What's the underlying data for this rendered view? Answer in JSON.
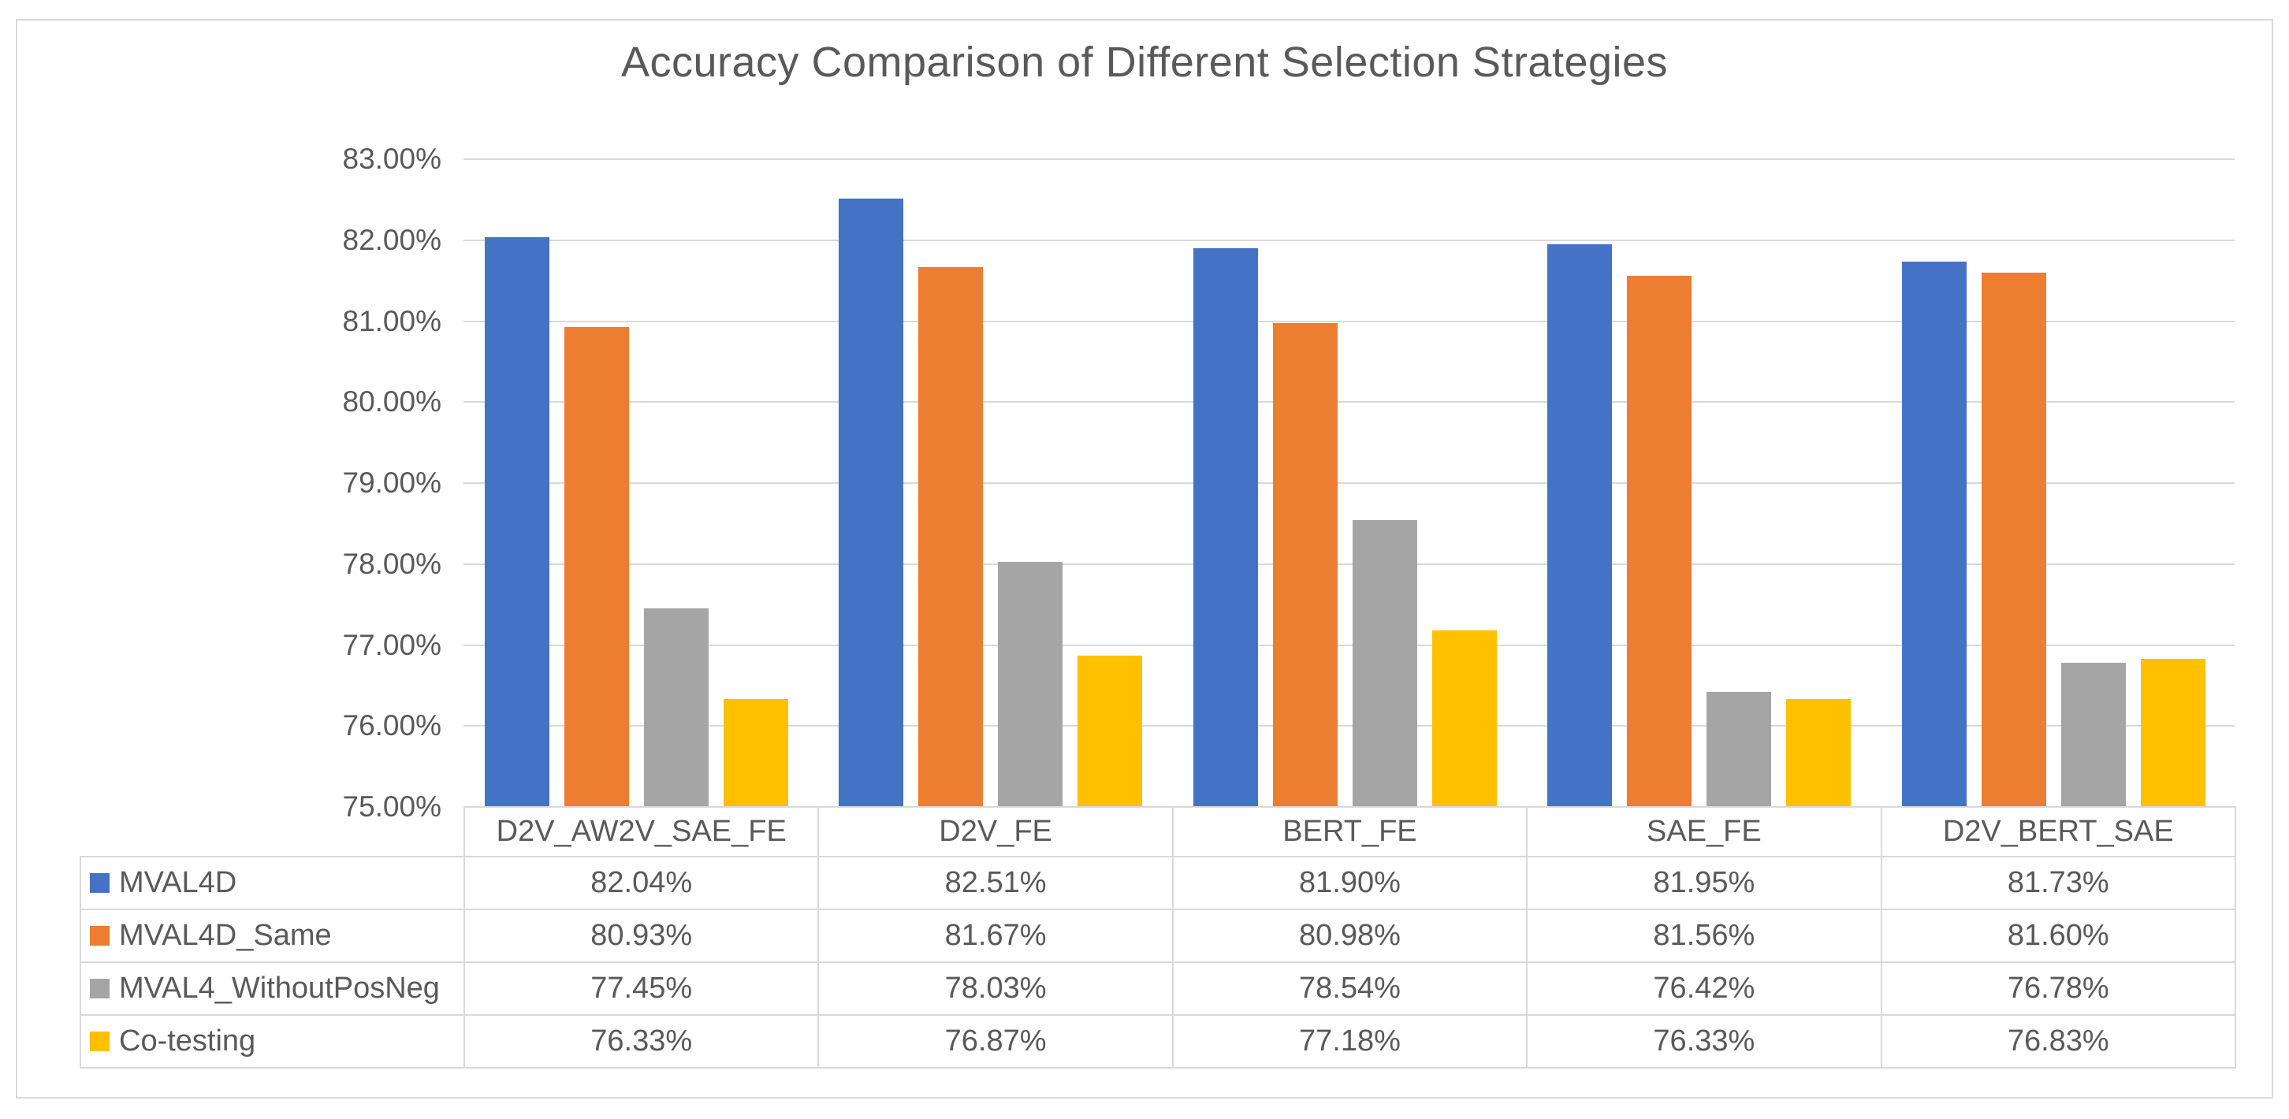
{
  "chart_data": {
    "type": "bar",
    "title": "Accuracy Comparison of Different Selection Strategies",
    "categories": [
      "D2V_AW2V_SAE_FE",
      "D2V_FE",
      "BERT_FE",
      "SAE_FE",
      "D2V_BERT_SAE"
    ],
    "series": [
      {
        "name": "MVAL4D",
        "color": "#4472C4",
        "values": [
          82.04,
          82.51,
          81.9,
          81.95,
          81.73
        ],
        "display": [
          "82.04%",
          "82.51%",
          "81.90%",
          "81.95%",
          "81.73%"
        ]
      },
      {
        "name": "MVAL4D_Same",
        "color": "#ED7D31",
        "values": [
          80.93,
          81.67,
          80.98,
          81.56,
          81.6
        ],
        "display": [
          "80.93%",
          "81.67%",
          "80.98%",
          "81.56%",
          "81.60%"
        ]
      },
      {
        "name": "MVAL4_WithoutPosNeg",
        "color": "#A5A5A5",
        "values": [
          77.45,
          78.03,
          78.54,
          76.42,
          76.78
        ],
        "display": [
          "77.45%",
          "78.03%",
          "78.54%",
          "76.42%",
          "76.78%"
        ]
      },
      {
        "name": "Co-testing",
        "color": "#FFC000",
        "values": [
          76.33,
          76.87,
          77.18,
          76.33,
          76.83
        ],
        "display": [
          "76.33%",
          "76.87%",
          "77.18%",
          "76.33%",
          "76.83%"
        ]
      }
    ],
    "y_axis": {
      "min": 75,
      "max": 83,
      "step": 1,
      "tick_labels": [
        "83.00%",
        "82.00%",
        "81.00%",
        "80.00%",
        "79.00%",
        "78.00%",
        "77.00%",
        "76.00%",
        "75.00%"
      ]
    },
    "ylim": [
      75,
      83
    ],
    "grid": true,
    "legend_position": "data-table-left",
    "colors": {
      "gridline": "#D9D9D9",
      "frame_border": "#D9D9D9",
      "text": "#595959",
      "background": "#FFFFFF"
    }
  }
}
